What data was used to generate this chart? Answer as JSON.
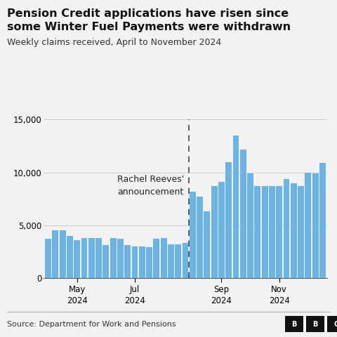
{
  "title_line1": "Pension Credit applications have risen since",
  "title_line2": "some Winter Fuel Payments were withdrawn",
  "subtitle": "Weekly claims received, April to November 2024",
  "source": "Source: Department for Work and Pensions",
  "bar_color": "#6cb4e4",
  "background_color": "#f2f2f2",
  "annotation_text": "Rachel Reeves'\nannouncement",
  "values": [
    3700,
    4500,
    4500,
    4000,
    3600,
    3800,
    3800,
    3800,
    3100,
    3800,
    3700,
    3100,
    3000,
    3000,
    2900,
    3700,
    3800,
    3200,
    3200,
    3300,
    8200,
    7700,
    6300,
    8700,
    9100,
    11000,
    13500,
    12200,
    9900,
    8700,
    8700,
    8700,
    8700,
    9400,
    9000,
    8700,
    10000,
    9900,
    10900
  ],
  "dashed_line_index": 20,
  "x_tick_positions": [
    4,
    12,
    24,
    32
  ],
  "x_tick_labels": [
    "May\n2024",
    "Jul\n2024",
    "Sep\n2024",
    "Nov\n2024"
  ],
  "ylim": [
    0,
    15000
  ],
  "yticks": [
    0,
    5000,
    10000,
    15000
  ],
  "grid_color": "#cccccc",
  "dashed_line_color": "#444444",
  "title_fontsize": 11.5,
  "subtitle_fontsize": 9,
  "annotation_fontsize": 9,
  "tick_fontsize": 8.5,
  "source_fontsize": 8
}
